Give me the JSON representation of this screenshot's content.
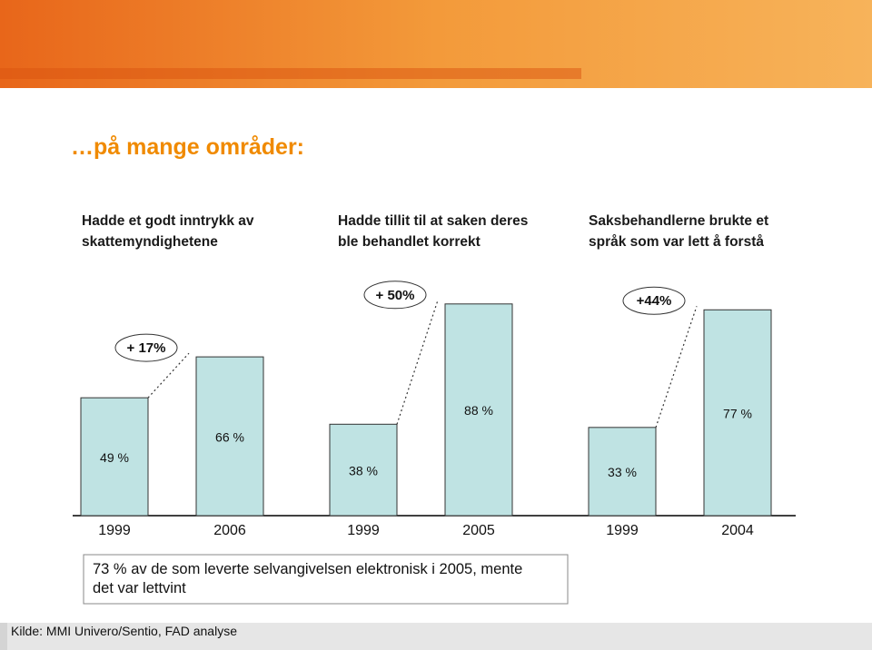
{
  "heading": "…på mange områder:",
  "chart_data": [
    {
      "type": "bar",
      "title": "Hadde et godt inntrykk av skattemyndighetene",
      "categories": [
        "1999",
        "2006"
      ],
      "values": [
        49,
        66
      ],
      "value_labels": [
        "49 %",
        "66 %"
      ],
      "annotation": "+ 17%",
      "color": "#bfe3e3",
      "ylim": [
        0,
        100
      ]
    },
    {
      "type": "bar",
      "title": "Hadde tillit til at saken deres ble behandlet korrekt",
      "categories": [
        "1999",
        "2005"
      ],
      "values": [
        38,
        88
      ],
      "value_labels": [
        "38 %",
        "88 %"
      ],
      "annotation": "+ 50%",
      "color": "#bfe3e3",
      "ylim": [
        0,
        100
      ]
    },
    {
      "type": "bar",
      "title": "Saksbehandlerne brukte et språk som var lett å forstå",
      "categories": [
        "1999",
        "2004"
      ],
      "values": [
        33,
        77
      ],
      "value_labels": [
        "33 %",
        "77 %"
      ],
      "annotation": "+44%",
      "color": "#bfe3e3",
      "ylim": [
        0,
        90
      ]
    }
  ],
  "note": "73 % av de som leverte selvangivelsen elektronisk i 2005, mente det var lettvint",
  "source": "Kilde: MMI Univero/Sentio, FAD analyse"
}
